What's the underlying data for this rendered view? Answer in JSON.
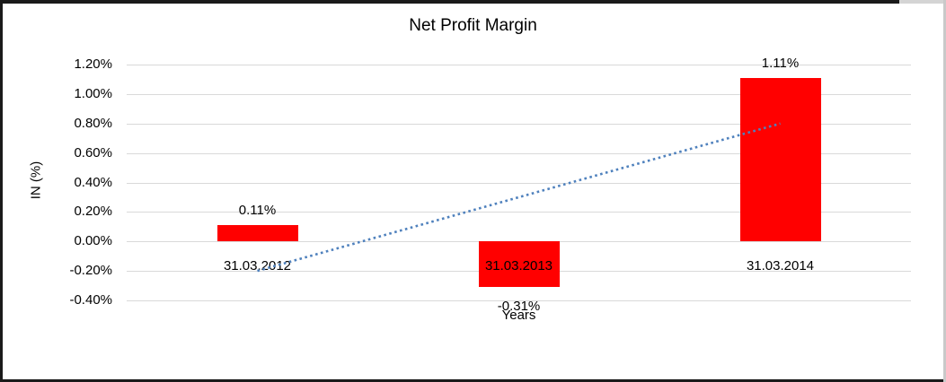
{
  "chart_data": {
    "type": "bar",
    "title": "Net Profit Margin",
    "xlabel": "Years",
    "ylabel": "IN (%)",
    "categories": [
      "31.03.2012",
      "31.03.2013",
      "31.03.2014"
    ],
    "values": [
      0.11,
      -0.31,
      1.11
    ],
    "data_labels": [
      "0.11%",
      "-0.31%",
      "1.11%"
    ],
    "unit": "%",
    "ylim": [
      -0.4,
      1.2
    ],
    "yticks": [
      1.2,
      1.0,
      0.8,
      0.6,
      0.4,
      0.2,
      0.0,
      -0.2,
      -0.4
    ],
    "ytick_labels": [
      "1.20%",
      "1.00%",
      "0.80%",
      "0.60%",
      "0.40%",
      "0.20%",
      "0.00%",
      "-0.20%",
      "-0.40%"
    ],
    "grid": true,
    "legend": false,
    "bar_color": "#FF0000",
    "gridline_color": "#D9D9D9",
    "text_color": "#000000",
    "trendline": {
      "type": "linear",
      "style": "dotted",
      "color": "#4F81BD",
      "start_value": -0.2,
      "end_value": 0.8
    }
  }
}
